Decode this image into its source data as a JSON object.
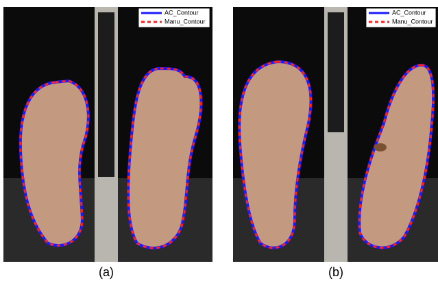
{
  "panels": [
    {
      "label": "(a)",
      "legend": [
        "AC_Contour",
        "Manu_Contour"
      ]
    },
    {
      "label": "(b)",
      "legend": [
        "AC_Contour",
        "Manu_Contour"
      ]
    }
  ]
}
